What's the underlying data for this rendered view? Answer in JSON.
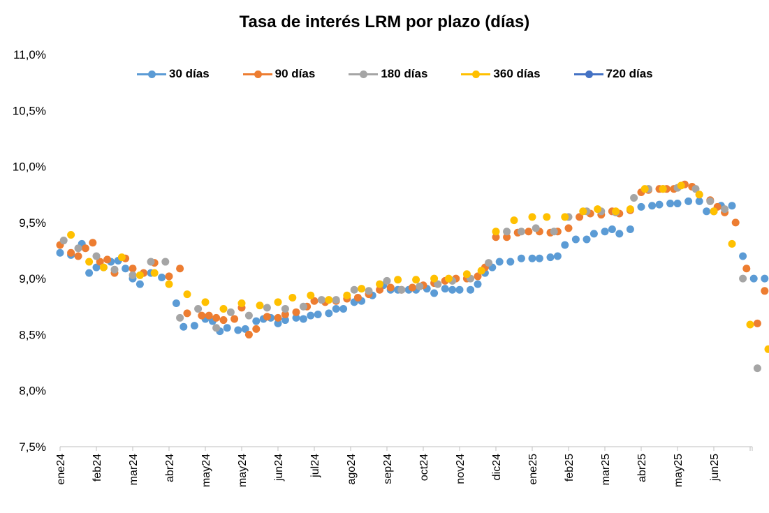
{
  "chart_data": {
    "type": "scatter",
    "title": "Tasa de interés LRM por plazo (días)",
    "xlabel": "",
    "ylabel": "",
    "ylim": [
      7.5,
      11.0
    ],
    "y_ticks": [
      "7,5%",
      "8,0%",
      "8,5%",
      "9,0%",
      "9,5%",
      "10,0%",
      "10,5%",
      "11,0%"
    ],
    "x_categories": [
      "ene24",
      "feb24",
      "mar24",
      "abr24",
      "may24",
      "may24",
      "jun24",
      "jul24",
      "ago24",
      "sep24",
      "oct24",
      "nov24",
      "dic24",
      "ene25",
      "feb25",
      "mar25",
      "abr25",
      "may25",
      "jun25"
    ],
    "legend_position": "top",
    "grid": false,
    "series": [
      {
        "name": "30 días",
        "color": "#5B9BD5",
        "values": [
          [
            0.0,
            9.23
          ],
          [
            0.3,
            9.21
          ],
          [
            0.6,
            9.31
          ],
          [
            0.8,
            9.05
          ],
          [
            1.0,
            9.1
          ],
          [
            1.2,
            9.1
          ],
          [
            1.4,
            9.15
          ],
          [
            1.6,
            9.16
          ],
          [
            1.8,
            9.09
          ],
          [
            2.0,
            9.0
          ],
          [
            2.2,
            8.95
          ],
          [
            2.5,
            9.05
          ],
          [
            2.8,
            9.01
          ],
          [
            3.2,
            8.78
          ],
          [
            3.4,
            8.57
          ],
          [
            3.7,
            8.58
          ],
          [
            4.0,
            8.64
          ],
          [
            4.2,
            8.62
          ],
          [
            4.4,
            8.53
          ],
          [
            4.6,
            8.56
          ],
          [
            4.9,
            8.54
          ],
          [
            5.1,
            8.55
          ],
          [
            5.4,
            8.62
          ],
          [
            5.6,
            8.64
          ],
          [
            5.8,
            8.65
          ],
          [
            6.0,
            8.6
          ],
          [
            6.2,
            8.63
          ],
          [
            6.5,
            8.65
          ],
          [
            6.7,
            8.64
          ],
          [
            6.9,
            8.67
          ],
          [
            7.1,
            8.68
          ],
          [
            7.4,
            8.69
          ],
          [
            7.6,
            8.73
          ],
          [
            7.8,
            8.73
          ],
          [
            8.1,
            8.79
          ],
          [
            8.3,
            8.8
          ],
          [
            8.6,
            8.85
          ],
          [
            8.9,
            8.94
          ],
          [
            9.1,
            8.9
          ],
          [
            9.3,
            8.9
          ],
          [
            9.6,
            8.9
          ],
          [
            9.8,
            8.9
          ],
          [
            10.1,
            8.91
          ],
          [
            10.3,
            8.87
          ],
          [
            10.6,
            8.91
          ],
          [
            10.8,
            8.9
          ],
          [
            11.0,
            8.9
          ],
          [
            11.3,
            8.9
          ],
          [
            11.5,
            8.95
          ],
          [
            11.7,
            9.05
          ],
          [
            11.9,
            9.1
          ],
          [
            12.1,
            9.15
          ],
          [
            12.4,
            9.15
          ],
          [
            12.7,
            9.18
          ],
          [
            13.0,
            9.18
          ],
          [
            13.2,
            9.18
          ],
          [
            13.5,
            9.19
          ],
          [
            13.7,
            9.2
          ],
          [
            13.9,
            9.3
          ],
          [
            14.2,
            9.35
          ],
          [
            14.5,
            9.35
          ],
          [
            14.7,
            9.4
          ],
          [
            15.0,
            9.42
          ],
          [
            15.2,
            9.44
          ],
          [
            15.4,
            9.4
          ],
          [
            15.7,
            9.44
          ],
          [
            16.0,
            9.64
          ],
          [
            16.3,
            9.65
          ],
          [
            16.5,
            9.66
          ],
          [
            16.8,
            9.67
          ],
          [
            17.0,
            9.67
          ],
          [
            17.3,
            9.69
          ],
          [
            17.6,
            9.69
          ],
          [
            17.8,
            9.6
          ],
          [
            18.0,
            9.6
          ],
          [
            18.2,
            9.65
          ],
          [
            18.5,
            9.65
          ],
          [
            18.8,
            9.2
          ],
          [
            19.1,
            9.0
          ],
          [
            19.4,
            9.0
          ]
        ]
      },
      {
        "name": "90 días",
        "color": "#ED7D31",
        "values": [
          [
            0.0,
            9.3
          ],
          [
            0.3,
            9.23
          ],
          [
            0.5,
            9.2
          ],
          [
            0.7,
            9.27
          ],
          [
            0.9,
            9.32
          ],
          [
            1.1,
            9.15
          ],
          [
            1.3,
            9.17
          ],
          [
            1.5,
            9.05
          ],
          [
            1.8,
            9.18
          ],
          [
            2.0,
            9.09
          ],
          [
            2.3,
            9.05
          ],
          [
            2.6,
            9.14
          ],
          [
            3.0,
            9.02
          ],
          [
            3.3,
            9.09
          ],
          [
            3.5,
            8.69
          ],
          [
            3.9,
            8.67
          ],
          [
            4.1,
            8.67
          ],
          [
            4.3,
            8.65
          ],
          [
            4.5,
            8.63
          ],
          [
            4.8,
            8.64
          ],
          [
            5.0,
            8.74
          ],
          [
            5.2,
            8.5
          ],
          [
            5.4,
            8.55
          ],
          [
            5.7,
            8.66
          ],
          [
            6.0,
            8.65
          ],
          [
            6.2,
            8.68
          ],
          [
            6.5,
            8.7
          ],
          [
            6.8,
            8.75
          ],
          [
            7.0,
            8.8
          ],
          [
            7.3,
            8.79
          ],
          [
            7.6,
            8.8
          ],
          [
            7.9,
            8.82
          ],
          [
            8.2,
            8.83
          ],
          [
            8.5,
            8.86
          ],
          [
            8.8,
            8.9
          ],
          [
            9.1,
            8.92
          ],
          [
            9.4,
            8.9
          ],
          [
            9.7,
            8.92
          ],
          [
            10.0,
            8.94
          ],
          [
            10.3,
            8.96
          ],
          [
            10.6,
            8.98
          ],
          [
            10.9,
            9.0
          ],
          [
            11.2,
            9.0
          ],
          [
            11.5,
            9.02
          ],
          [
            11.7,
            9.1
          ],
          [
            12.0,
            9.37
          ],
          [
            12.3,
            9.37
          ],
          [
            12.6,
            9.41
          ],
          [
            12.9,
            9.42
          ],
          [
            13.2,
            9.42
          ],
          [
            13.5,
            9.41
          ],
          [
            13.7,
            9.42
          ],
          [
            14.0,
            9.45
          ],
          [
            14.3,
            9.55
          ],
          [
            14.6,
            9.58
          ],
          [
            14.9,
            9.57
          ],
          [
            15.2,
            9.6
          ],
          [
            15.4,
            9.58
          ],
          [
            15.7,
            9.61
          ],
          [
            16.0,
            9.77
          ],
          [
            16.2,
            9.79
          ],
          [
            16.5,
            9.8
          ],
          [
            16.7,
            9.8
          ],
          [
            16.9,
            9.8
          ],
          [
            17.2,
            9.84
          ],
          [
            17.4,
            9.82
          ],
          [
            17.6,
            9.75
          ],
          [
            17.9,
            9.7
          ],
          [
            18.1,
            9.64
          ],
          [
            18.3,
            9.59
          ],
          [
            18.6,
            9.5
          ],
          [
            18.9,
            9.09
          ],
          [
            19.2,
            8.6
          ],
          [
            19.4,
            8.89
          ]
        ]
      },
      {
        "name": "180 días",
        "color": "#A5A5A5",
        "values": [
          [
            0.1,
            9.34
          ],
          [
            0.5,
            9.27
          ],
          [
            1.0,
            9.2
          ],
          [
            1.5,
            9.08
          ],
          [
            2.0,
            9.03
          ],
          [
            2.5,
            9.15
          ],
          [
            2.9,
            9.15
          ],
          [
            3.3,
            8.65
          ],
          [
            3.8,
            8.73
          ],
          [
            4.3,
            8.56
          ],
          [
            4.7,
            8.7
          ],
          [
            5.2,
            8.67
          ],
          [
            5.7,
            8.74
          ],
          [
            6.2,
            8.73
          ],
          [
            6.7,
            8.75
          ],
          [
            7.2,
            8.81
          ],
          [
            7.6,
            8.81
          ],
          [
            8.1,
            8.9
          ],
          [
            8.5,
            8.89
          ],
          [
            9.0,
            8.98
          ],
          [
            9.4,
            8.9
          ],
          [
            9.9,
            8.93
          ],
          [
            10.4,
            8.95
          ],
          [
            10.8,
            8.98
          ],
          [
            11.3,
            9.0
          ],
          [
            11.8,
            9.14
          ],
          [
            12.3,
            9.42
          ],
          [
            12.7,
            9.42
          ],
          [
            13.1,
            9.45
          ],
          [
            13.6,
            9.42
          ],
          [
            14.0,
            9.55
          ],
          [
            14.5,
            9.6
          ],
          [
            14.9,
            9.6
          ],
          [
            15.3,
            9.59
          ],
          [
            15.8,
            9.72
          ],
          [
            16.2,
            9.8
          ],
          [
            16.6,
            9.8
          ],
          [
            17.0,
            9.81
          ],
          [
            17.5,
            9.8
          ],
          [
            17.9,
            9.69
          ],
          [
            18.3,
            9.62
          ],
          [
            18.8,
            9.0
          ],
          [
            19.2,
            8.2
          ]
        ]
      },
      {
        "name": "360 días",
        "color": "#FFC000",
        "values": [
          [
            0.3,
            9.39
          ],
          [
            0.8,
            9.15
          ],
          [
            1.2,
            9.1
          ],
          [
            1.7,
            9.19
          ],
          [
            2.2,
            9.03
          ],
          [
            2.6,
            9.05
          ],
          [
            3.0,
            8.95
          ],
          [
            3.5,
            8.86
          ],
          [
            4.0,
            8.79
          ],
          [
            4.5,
            8.73
          ],
          [
            5.0,
            8.78
          ],
          [
            5.5,
            8.76
          ],
          [
            6.0,
            8.79
          ],
          [
            6.4,
            8.83
          ],
          [
            6.9,
            8.85
          ],
          [
            7.4,
            8.81
          ],
          [
            7.9,
            8.85
          ],
          [
            8.3,
            8.91
          ],
          [
            8.8,
            8.95
          ],
          [
            9.3,
            8.99
          ],
          [
            9.8,
            8.99
          ],
          [
            10.3,
            9.0
          ],
          [
            10.7,
            9.0
          ],
          [
            11.2,
            9.04
          ],
          [
            11.6,
            9.07
          ],
          [
            12.0,
            9.42
          ],
          [
            12.5,
            9.52
          ],
          [
            13.0,
            9.55
          ],
          [
            13.4,
            9.55
          ],
          [
            13.9,
            9.55
          ],
          [
            14.4,
            9.6
          ],
          [
            14.8,
            9.62
          ],
          [
            15.3,
            9.6
          ],
          [
            15.7,
            9.62
          ],
          [
            16.1,
            9.8
          ],
          [
            16.6,
            9.8
          ],
          [
            17.1,
            9.83
          ],
          [
            17.6,
            9.75
          ],
          [
            18.0,
            9.6
          ],
          [
            18.5,
            9.31
          ],
          [
            19.0,
            8.59
          ],
          [
            19.5,
            8.37
          ]
        ]
      },
      {
        "name": "720 días",
        "color": "#4472C4",
        "values": []
      }
    ]
  }
}
